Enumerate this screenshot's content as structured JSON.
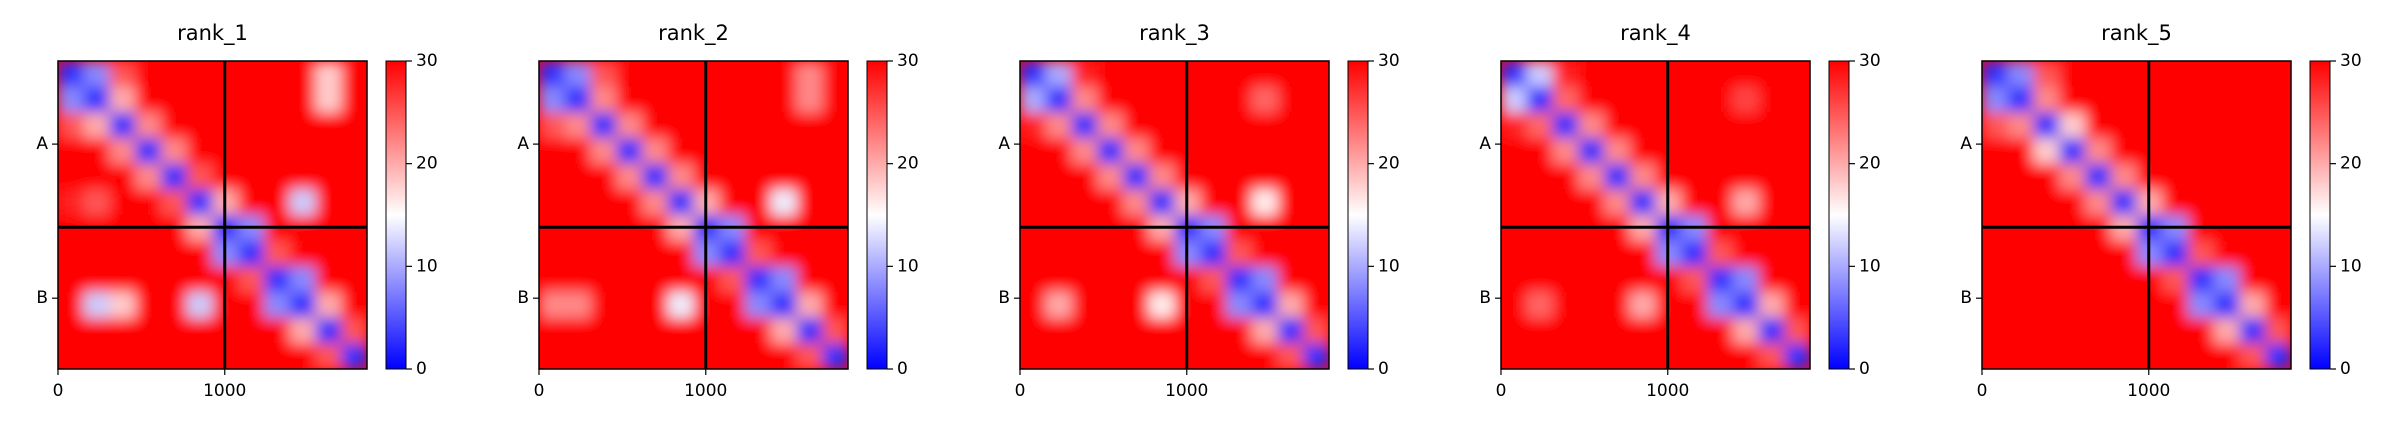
{
  "chart_data": [
    {
      "type": "heatmap",
      "title": "rank_1",
      "xlim": [
        0,
        1853
      ],
      "ylim": [
        0,
        1853
      ],
      "xticks": [
        0,
        1000
      ],
      "yticks": [
        {
          "value": 500,
          "label": "A"
        },
        {
          "value": 1427,
          "label": "B"
        }
      ],
      "boundaries": [
        1000
      ],
      "clim": [
        0,
        30
      ],
      "cticks": [
        0,
        10,
        20,
        30
      ],
      "colors": [
        "#0000ff",
        "#ffffff",
        "#ff0000"
      ],
      "values": [
        [
          3,
          8,
          25,
          30,
          30,
          30,
          30,
          30,
          30,
          30,
          18,
          30
        ],
        [
          8,
          3,
          20,
          30,
          30,
          30,
          30,
          30,
          30,
          30,
          18,
          30
        ],
        [
          25,
          20,
          3,
          22,
          30,
          30,
          30,
          30,
          30,
          30,
          30,
          30
        ],
        [
          30,
          30,
          22,
          3,
          22,
          30,
          30,
          30,
          30,
          30,
          30,
          30
        ],
        [
          30,
          30,
          30,
          22,
          3,
          25,
          30,
          30,
          30,
          30,
          30,
          30
        ],
        [
          28,
          25,
          30,
          30,
          25,
          3,
          20,
          30,
          30,
          12,
          30,
          30
        ],
        [
          30,
          30,
          30,
          30,
          30,
          20,
          3,
          8,
          30,
          30,
          30,
          30
        ],
        [
          30,
          30,
          30,
          30,
          30,
          30,
          8,
          3,
          25,
          30,
          30,
          30
        ],
        [
          30,
          30,
          30,
          30,
          30,
          30,
          30,
          25,
          3,
          8,
          30,
          30
        ],
        [
          30,
          12,
          18,
          30,
          30,
          12,
          30,
          30,
          8,
          3,
          20,
          30
        ],
        [
          30,
          30,
          30,
          30,
          30,
          30,
          30,
          30,
          30,
          20,
          3,
          25
        ],
        [
          30,
          30,
          30,
          30,
          30,
          30,
          30,
          30,
          30,
          30,
          25,
          3
        ]
      ]
    },
    {
      "type": "heatmap",
      "title": "rank_2",
      "xlim": [
        0,
        1853
      ],
      "ylim": [
        0,
        1853
      ],
      "xticks": [
        0,
        1000
      ],
      "yticks": [
        {
          "value": 500,
          "label": "A"
        },
        {
          "value": 1427,
          "label": "B"
        }
      ],
      "boundaries": [
        1000
      ],
      "clim": [
        0,
        30
      ],
      "cticks": [
        0,
        10,
        20,
        30
      ],
      "colors": [
        "#0000ff",
        "#ffffff",
        "#ff0000"
      ],
      "values": [
        [
          3,
          8,
          25,
          30,
          30,
          30,
          30,
          30,
          30,
          30,
          22,
          30
        ],
        [
          8,
          3,
          22,
          30,
          30,
          30,
          30,
          30,
          30,
          30,
          22,
          30
        ],
        [
          25,
          22,
          3,
          22,
          30,
          30,
          30,
          30,
          30,
          30,
          30,
          30
        ],
        [
          30,
          30,
          22,
          3,
          22,
          30,
          30,
          30,
          30,
          30,
          30,
          30
        ],
        [
          30,
          30,
          30,
          22,
          3,
          22,
          30,
          30,
          30,
          30,
          30,
          30
        ],
        [
          30,
          30,
          30,
          30,
          22,
          3,
          20,
          30,
          30,
          14,
          30,
          30
        ],
        [
          30,
          30,
          30,
          30,
          30,
          20,
          3,
          8,
          30,
          30,
          30,
          30
        ],
        [
          30,
          30,
          30,
          30,
          30,
          30,
          8,
          3,
          25,
          30,
          30,
          30
        ],
        [
          30,
          30,
          30,
          30,
          30,
          30,
          30,
          25,
          3,
          8,
          30,
          30
        ],
        [
          22,
          22,
          30,
          30,
          30,
          14,
          30,
          30,
          8,
          3,
          20,
          30
        ],
        [
          30,
          30,
          30,
          30,
          30,
          30,
          30,
          30,
          30,
          20,
          3,
          25
        ],
        [
          30,
          30,
          30,
          30,
          30,
          30,
          30,
          30,
          30,
          30,
          25,
          3
        ]
      ]
    },
    {
      "type": "heatmap",
      "title": "rank_3",
      "xlim": [
        0,
        1853
      ],
      "ylim": [
        0,
        1853
      ],
      "xticks": [
        0,
        1000
      ],
      "yticks": [
        {
          "value": 500,
          "label": "A"
        },
        {
          "value": 1427,
          "label": "B"
        }
      ],
      "boundaries": [
        1000
      ],
      "clim": [
        0,
        30
      ],
      "cticks": [
        0,
        10,
        20,
        30
      ],
      "colors": [
        "#0000ff",
        "#ffffff",
        "#ff0000"
      ],
      "values": [
        [
          3,
          10,
          28,
          30,
          30,
          30,
          30,
          30,
          30,
          30,
          30,
          30
        ],
        [
          10,
          3,
          22,
          30,
          30,
          30,
          30,
          30,
          30,
          24,
          30,
          30
        ],
        [
          28,
          22,
          3,
          22,
          30,
          30,
          30,
          30,
          30,
          30,
          30,
          30
        ],
        [
          30,
          30,
          22,
          3,
          22,
          30,
          30,
          30,
          30,
          30,
          30,
          30
        ],
        [
          30,
          30,
          30,
          22,
          3,
          22,
          30,
          30,
          30,
          30,
          30,
          30
        ],
        [
          30,
          30,
          30,
          30,
          22,
          3,
          20,
          30,
          30,
          16,
          30,
          30
        ],
        [
          30,
          30,
          30,
          30,
          30,
          20,
          3,
          8,
          30,
          30,
          30,
          30
        ],
        [
          30,
          30,
          30,
          30,
          30,
          30,
          8,
          3,
          25,
          30,
          30,
          30
        ],
        [
          30,
          30,
          30,
          30,
          30,
          30,
          30,
          25,
          3,
          8,
          30,
          30
        ],
        [
          30,
          20,
          30,
          30,
          30,
          16,
          30,
          30,
          8,
          3,
          20,
          30
        ],
        [
          30,
          30,
          30,
          30,
          30,
          30,
          30,
          30,
          30,
          20,
          3,
          25
        ],
        [
          30,
          30,
          30,
          30,
          30,
          30,
          30,
          30,
          30,
          30,
          25,
          3
        ]
      ]
    },
    {
      "type": "heatmap",
      "title": "rank_4",
      "xlim": [
        0,
        1853
      ],
      "ylim": [
        0,
        1853
      ],
      "xticks": [
        0,
        1000
      ],
      "yticks": [
        {
          "value": 500,
          "label": "A"
        },
        {
          "value": 1427,
          "label": "B"
        }
      ],
      "boundaries": [
        1000
      ],
      "clim": [
        0,
        30
      ],
      "cticks": [
        0,
        10,
        20,
        30
      ],
      "colors": [
        "#0000ff",
        "#ffffff",
        "#ff0000"
      ],
      "values": [
        [
          3,
          12,
          28,
          30,
          30,
          30,
          30,
          30,
          30,
          30,
          30,
          30
        ],
        [
          12,
          3,
          24,
          30,
          30,
          30,
          30,
          30,
          30,
          26,
          30,
          30
        ],
        [
          28,
          24,
          3,
          22,
          30,
          30,
          30,
          30,
          30,
          30,
          30,
          30
        ],
        [
          30,
          30,
          22,
          3,
          22,
          30,
          30,
          30,
          30,
          30,
          30,
          30
        ],
        [
          30,
          30,
          30,
          22,
          3,
          22,
          30,
          30,
          30,
          30,
          30,
          30
        ],
        [
          30,
          30,
          30,
          30,
          22,
          3,
          20,
          30,
          30,
          20,
          30,
          30
        ],
        [
          30,
          30,
          30,
          30,
          30,
          20,
          3,
          8,
          30,
          30,
          30,
          30
        ],
        [
          30,
          30,
          30,
          30,
          30,
          30,
          8,
          3,
          25,
          30,
          30,
          30
        ],
        [
          30,
          30,
          30,
          30,
          30,
          30,
          30,
          25,
          3,
          8,
          30,
          30
        ],
        [
          30,
          24,
          30,
          30,
          30,
          20,
          30,
          30,
          8,
          3,
          20,
          30
        ],
        [
          30,
          30,
          30,
          30,
          30,
          30,
          30,
          30,
          30,
          20,
          3,
          25
        ],
        [
          30,
          30,
          30,
          30,
          30,
          30,
          30,
          30,
          30,
          30,
          25,
          3
        ]
      ]
    },
    {
      "type": "heatmap",
      "title": "rank_5",
      "xlim": [
        0,
        1853
      ],
      "ylim": [
        0,
        1853
      ],
      "xticks": [
        0,
        1000
      ],
      "yticks": [
        {
          "value": 500,
          "label": "A"
        },
        {
          "value": 1427,
          "label": "B"
        }
      ],
      "boundaries": [
        1000
      ],
      "clim": [
        0,
        30
      ],
      "cticks": [
        0,
        10,
        20,
        30
      ],
      "colors": [
        "#0000ff",
        "#ffffff",
        "#ff0000"
      ],
      "values": [
        [
          3,
          8,
          25,
          30,
          30,
          30,
          30,
          30,
          30,
          30,
          30,
          30
        ],
        [
          8,
          3,
          22,
          30,
          30,
          30,
          30,
          30,
          30,
          30,
          30,
          30
        ],
        [
          25,
          22,
          3,
          18,
          30,
          30,
          30,
          30,
          30,
          30,
          30,
          30
        ],
        [
          30,
          30,
          18,
          3,
          22,
          30,
          30,
          30,
          30,
          30,
          30,
          30
        ],
        [
          30,
          30,
          30,
          22,
          3,
          22,
          30,
          30,
          30,
          30,
          30,
          30
        ],
        [
          30,
          30,
          30,
          30,
          22,
          3,
          20,
          30,
          30,
          30,
          30,
          30
        ],
        [
          30,
          30,
          30,
          30,
          30,
          20,
          3,
          8,
          30,
          30,
          30,
          30
        ],
        [
          30,
          30,
          30,
          30,
          30,
          30,
          8,
          3,
          25,
          30,
          30,
          30
        ],
        [
          30,
          30,
          30,
          30,
          30,
          30,
          30,
          25,
          3,
          8,
          30,
          30
        ],
        [
          30,
          30,
          30,
          30,
          30,
          30,
          30,
          30,
          8,
          3,
          20,
          30
        ],
        [
          30,
          30,
          30,
          30,
          30,
          30,
          30,
          30,
          30,
          20,
          3,
          25
        ],
        [
          30,
          30,
          30,
          30,
          30,
          30,
          30,
          30,
          30,
          30,
          25,
          3
        ]
      ]
    }
  ]
}
